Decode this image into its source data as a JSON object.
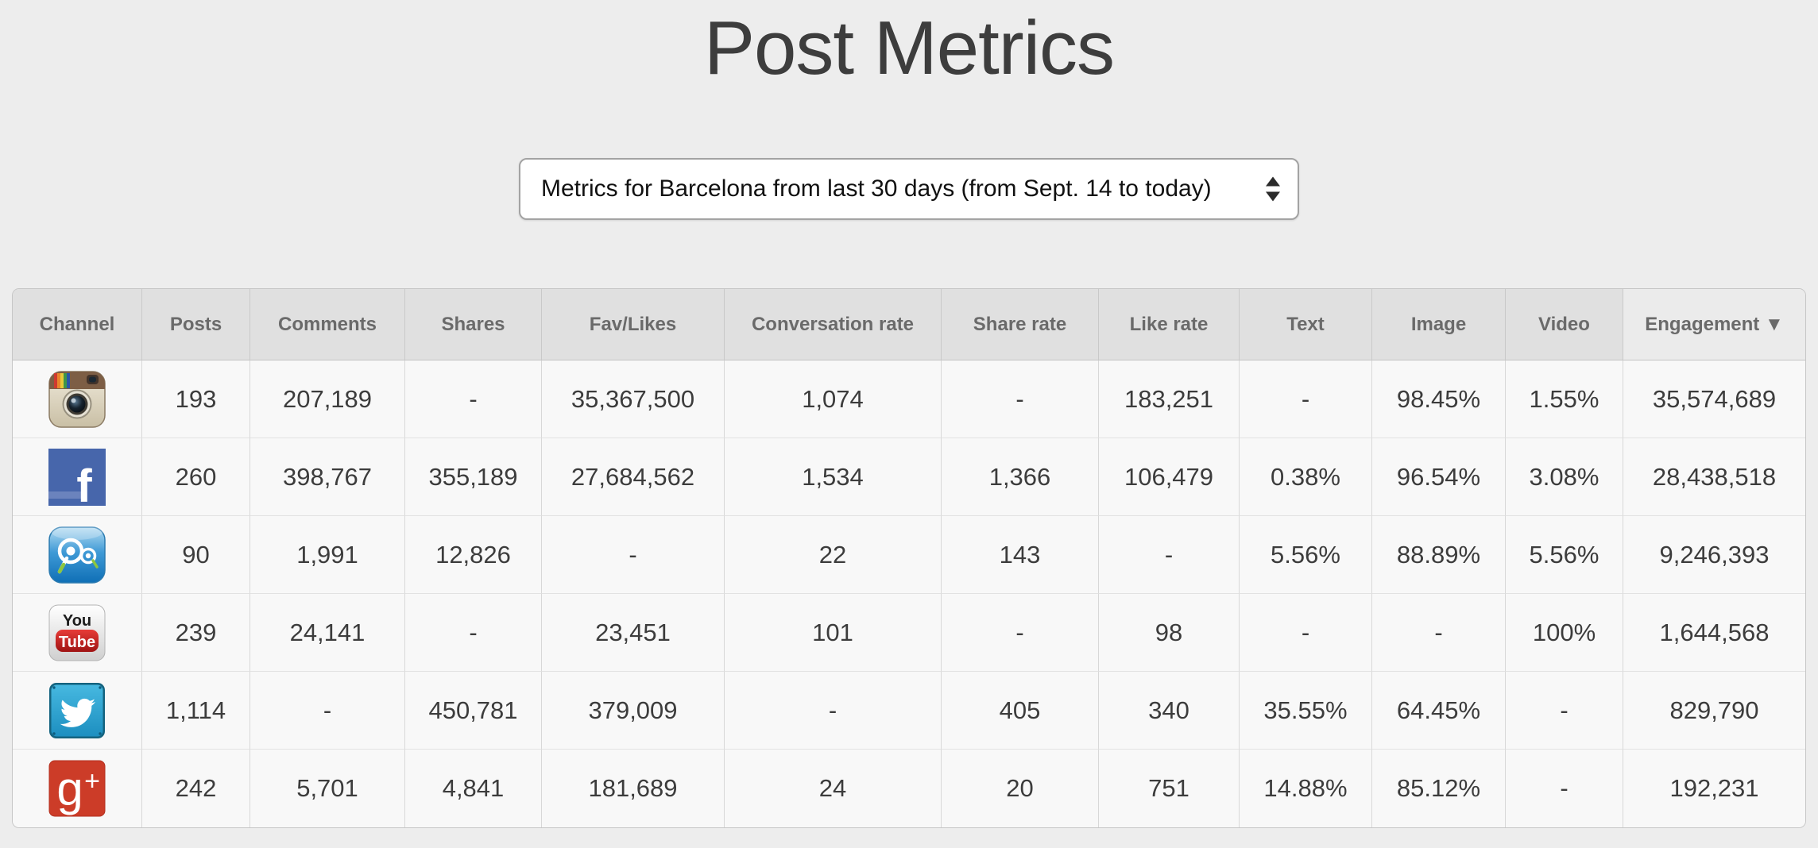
{
  "page": {
    "title": "Post Metrics"
  },
  "filter": {
    "selected_option": "Metrics for Barcelona from last 30 days (from Sept. 14 to today)"
  },
  "colors": {
    "page_background": "#ededed",
    "header_background": "#e0e0e0",
    "sorted_header_background": "#ebebeb",
    "row_background": "#f8f8f8",
    "header_text": "#6a6a6a",
    "cell_text": "#3c3c3c",
    "facebook_blue": "#4766ab",
    "twitter_blue": "#2ba0cd",
    "youtube_red": "#cc181e",
    "googleplus_red": "#cc3c28"
  },
  "table": {
    "sort": {
      "column": "engagement",
      "direction": "desc",
      "indicator": "▼"
    },
    "columns": [
      {
        "key": "channel",
        "label": "Channel"
      },
      {
        "key": "posts",
        "label": "Posts"
      },
      {
        "key": "comments",
        "label": "Comments"
      },
      {
        "key": "shares",
        "label": "Shares"
      },
      {
        "key": "fav_likes",
        "label": "Fav/Likes"
      },
      {
        "key": "conversation_rate",
        "label": "Conversation rate"
      },
      {
        "key": "share_rate",
        "label": "Share rate"
      },
      {
        "key": "like_rate",
        "label": "Like rate"
      },
      {
        "key": "text",
        "label": "Text"
      },
      {
        "key": "image",
        "label": "Image"
      },
      {
        "key": "video",
        "label": "Video"
      },
      {
        "key": "engagement",
        "label": "Engagement"
      }
    ],
    "rows": [
      {
        "channel": "instagram",
        "values": {
          "posts": "193",
          "comments": "207,189",
          "shares": "-",
          "fav_likes": "35,367,500",
          "conversation_rate": "1,074",
          "share_rate": "-",
          "like_rate": "183,251",
          "text": "-",
          "image": "98.45%",
          "video": "1.55%",
          "engagement": "35,574,689"
        }
      },
      {
        "channel": "facebook",
        "values": {
          "posts": "260",
          "comments": "398,767",
          "shares": "355,189",
          "fav_likes": "27,684,562",
          "conversation_rate": "1,534",
          "share_rate": "1,366",
          "like_rate": "106,479",
          "text": "0.38%",
          "image": "96.54%",
          "video": "3.08%",
          "engagement": "28,438,518"
        }
      },
      {
        "channel": "search-app",
        "values": {
          "posts": "90",
          "comments": "1,991",
          "shares": "12,826",
          "fav_likes": "-",
          "conversation_rate": "22",
          "share_rate": "143",
          "like_rate": "-",
          "text": "5.56%",
          "image": "88.89%",
          "video": "5.56%",
          "engagement": "9,246,393"
        }
      },
      {
        "channel": "youtube",
        "values": {
          "posts": "239",
          "comments": "24,141",
          "shares": "-",
          "fav_likes": "23,451",
          "conversation_rate": "101",
          "share_rate": "-",
          "like_rate": "98",
          "text": "-",
          "image": "-",
          "video": "100%",
          "engagement": "1,644,568"
        }
      },
      {
        "channel": "twitter",
        "values": {
          "posts": "1,114",
          "comments": "-",
          "shares": "450,781",
          "fav_likes": "379,009",
          "conversation_rate": "-",
          "share_rate": "405",
          "like_rate": "340",
          "text": "35.55%",
          "image": "64.45%",
          "video": "-",
          "engagement": "829,790"
        }
      },
      {
        "channel": "googleplus",
        "values": {
          "posts": "242",
          "comments": "5,701",
          "shares": "4,841",
          "fav_likes": "181,689",
          "conversation_rate": "24",
          "share_rate": "20",
          "like_rate": "751",
          "text": "14.88%",
          "image": "85.12%",
          "video": "-",
          "engagement": "192,231"
        }
      }
    ]
  }
}
